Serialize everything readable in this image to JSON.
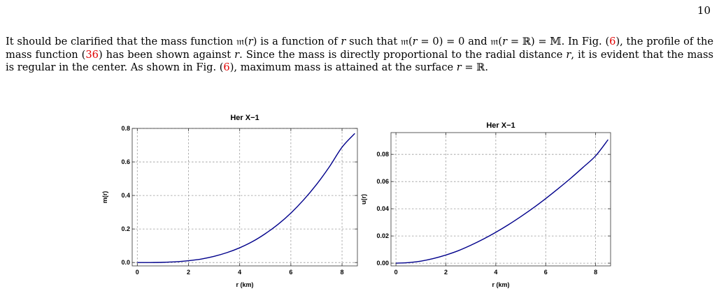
{
  "page": {
    "number": "10"
  },
  "paragraph": {
    "s1a": "It should be clarified that the mass function ",
    "m_sym": "𝔪",
    "s1b": "(",
    "r1": "r",
    "s1c": ") is a function of ",
    "r2": "r",
    "s1d": " such that 𝔪(",
    "r3": "r",
    "s1e": " = 0) = 0 and 𝔪(",
    "r4": "r",
    "s1f": " = ℝ) = 𝕄. In Fig. (",
    "ref1": "6",
    "s2a": "), the profile of the mass function (",
    "ref2": "36",
    "s2b": ") has been shown against ",
    "r5": "r",
    "s2c": ". Since the mass is directly proportional to the radial distance ",
    "r6": "r",
    "s2d": ", it is evident that the mass is regular in the center. As shown in Fig. (",
    "ref3": "6",
    "s2e": "), maximum mass is attained at the surface ",
    "r7": "r",
    "s2f": " = ℝ."
  },
  "chart_data": [
    {
      "type": "line",
      "title": "Her X−1",
      "xlabel": "r (km)",
      "ylabel": "m(r)",
      "xlim": [
        -0.2,
        8.6
      ],
      "ylim": [
        -0.02,
        0.8
      ],
      "xticks": [
        0,
        2,
        4,
        6,
        8
      ],
      "xtick_labels": [
        "0",
        "2",
        "4",
        "6",
        "8"
      ],
      "yticks": [
        0.0,
        0.2,
        0.4,
        0.6,
        0.8
      ],
      "ytick_labels": [
        "0.0",
        "0.2",
        "0.4",
        "0.6",
        "0.8"
      ],
      "grid": true,
      "color": "#00008b",
      "x": [
        0,
        0.5,
        1,
        1.5,
        2,
        2.5,
        3,
        3.5,
        4,
        4.5,
        5,
        5.5,
        6,
        6.5,
        7,
        7.5,
        8,
        8.5
      ],
      "y": [
        0.0,
        0.0002,
        0.0013,
        0.0045,
        0.011,
        0.021,
        0.037,
        0.059,
        0.088,
        0.125,
        0.172,
        0.228,
        0.295,
        0.374,
        0.465,
        0.57,
        0.688,
        0.77
      ]
    },
    {
      "type": "line",
      "title": "Her X−1",
      "xlabel": "r (km)",
      "ylabel": "u(r)",
      "xlim": [
        -0.2,
        8.6
      ],
      "ylim": [
        -0.002,
        0.096
      ],
      "xticks": [
        0,
        2,
        4,
        6,
        8
      ],
      "xtick_labels": [
        "0",
        "2",
        "4",
        "6",
        "8"
      ],
      "yticks": [
        0.0,
        0.02,
        0.04,
        0.06,
        0.08
      ],
      "ytick_labels": [
        "0.00",
        "0.02",
        "0.04",
        "0.06",
        "0.08"
      ],
      "grid": true,
      "color": "#00008b",
      "x": [
        0,
        0.5,
        1,
        1.5,
        2,
        2.5,
        3,
        3.5,
        4,
        4.5,
        5,
        5.5,
        6,
        6.5,
        7,
        7.5,
        8,
        8.5
      ],
      "y": [
        0.0,
        0.0004,
        0.0015,
        0.0034,
        0.006,
        0.0092,
        0.0132,
        0.0177,
        0.0227,
        0.0282,
        0.0342,
        0.0406,
        0.0475,
        0.0548,
        0.0624,
        0.0705,
        0.0789,
        0.0908
      ]
    }
  ]
}
